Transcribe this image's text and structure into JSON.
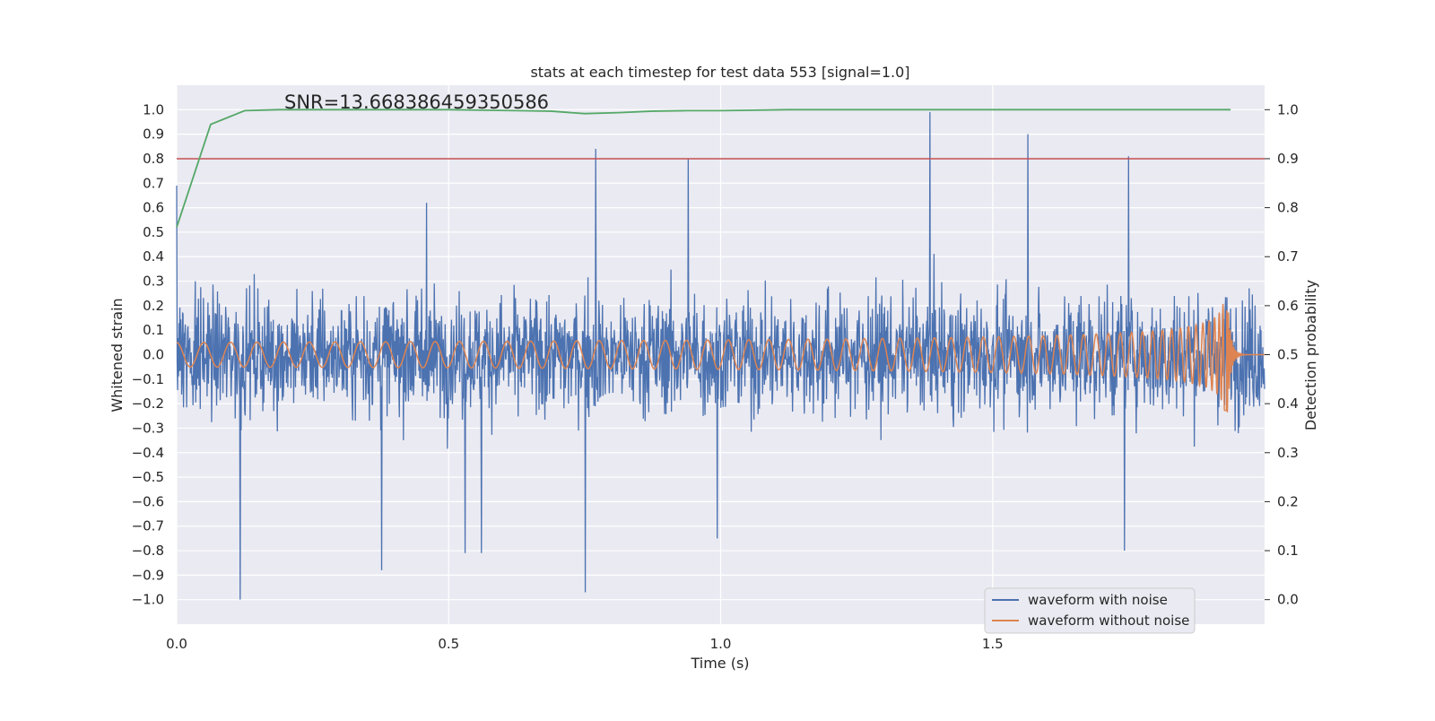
{
  "chart_data": {
    "type": "line",
    "title": "stats at each timestep for test data 553 [signal=1.0]",
    "xlabel": "Time (s)",
    "ylabel_left": "Whitened strain",
    "ylabel_right": "Detection probability",
    "annotation": "SNR=13.668386459350586",
    "xlim": [
      0.0,
      2.0
    ],
    "ylim_left": [
      -1.1,
      1.1
    ],
    "ylim_right": [
      -0.05,
      1.05
    ],
    "x_ticks": [
      "0.0",
      "0.5",
      "1.0",
      "1.5"
    ],
    "y_ticks_left": [
      "1.0",
      "0.9",
      "0.8",
      "0.7",
      "0.6",
      "0.5",
      "0.4",
      "0.3",
      "0.2",
      "0.1",
      "0.0",
      "−0.1",
      "−0.2",
      "−0.3",
      "−0.4",
      "−0.5",
      "−0.6",
      "−0.7",
      "−0.8",
      "−0.9",
      "−1.0"
    ],
    "y_ticks_right": [
      "1.0",
      "0.9",
      "0.8",
      "0.7",
      "0.6",
      "0.5",
      "0.4",
      "0.3",
      "0.2",
      "0.1",
      "0.0"
    ],
    "grid": true,
    "legend": {
      "position": "lower-right",
      "entries": [
        "waveform with noise",
        "waveform without noise"
      ]
    },
    "threshold_line": {
      "axis": "right",
      "value": 0.9,
      "color": "#c44e52"
    },
    "detection_probability": {
      "axis": "right",
      "color": "#55a868",
      "x": [
        0.0,
        0.0625,
        0.125,
        0.1875,
        0.25,
        0.3125,
        0.375,
        0.4375,
        0.5,
        0.5625,
        0.625,
        0.6875,
        0.75,
        0.8125,
        0.875,
        0.9375,
        1.0,
        1.0625,
        1.125,
        1.1875,
        1.25,
        1.3125,
        1.375,
        1.4375,
        1.5,
        1.5625,
        1.625,
        1.6875,
        1.75,
        1.8125,
        1.875,
        1.9375
      ],
      "y": [
        0.76,
        0.97,
        0.998,
        1.0,
        1.0,
        1.0,
        1.0,
        1.0,
        1.0,
        0.999,
        0.998,
        0.997,
        0.992,
        0.994,
        0.997,
        0.998,
        0.998,
        0.999,
        1.0,
        1.0,
        1.0,
        1.0,
        1.0,
        1.0,
        1.0,
        1.0,
        1.0,
        1.0,
        1.0,
        1.0,
        1.0,
        1.0
      ]
    },
    "series": [
      {
        "name": "waveform with noise",
        "axis": "left",
        "color": "#4c72b0",
        "x_range": [
          0.0,
          2.0
        ],
        "amplitude_range": [
          -1.0,
          1.0
        ],
        "peaks": [
          {
            "x": 0.0,
            "y": 0.69
          },
          {
            "x": 0.117,
            "y": -1.0
          },
          {
            "x": 0.377,
            "y": -0.88
          },
          {
            "x": 0.459,
            "y": 0.62
          },
          {
            "x": 0.53,
            "y": -0.81
          },
          {
            "x": 0.56,
            "y": -0.81
          },
          {
            "x": 0.751,
            "y": -0.97
          },
          {
            "x": 0.77,
            "y": 0.84
          },
          {
            "x": 0.94,
            "y": 0.8
          },
          {
            "x": 0.994,
            "y": -0.75
          },
          {
            "x": 1.385,
            "y": 0.99
          },
          {
            "x": 1.565,
            "y": 0.9
          },
          {
            "x": 1.742,
            "y": -0.8
          },
          {
            "x": 1.75,
            "y": 0.81
          }
        ]
      },
      {
        "name": "waveform without noise",
        "axis": "left",
        "color": "#dd8452",
        "x_range": [
          0.0,
          2.0
        ],
        "merger_time": 1.93,
        "start_amplitude": 0.05,
        "peak_amplitude": 0.32,
        "start_frequency_hz": 20
      }
    ]
  }
}
